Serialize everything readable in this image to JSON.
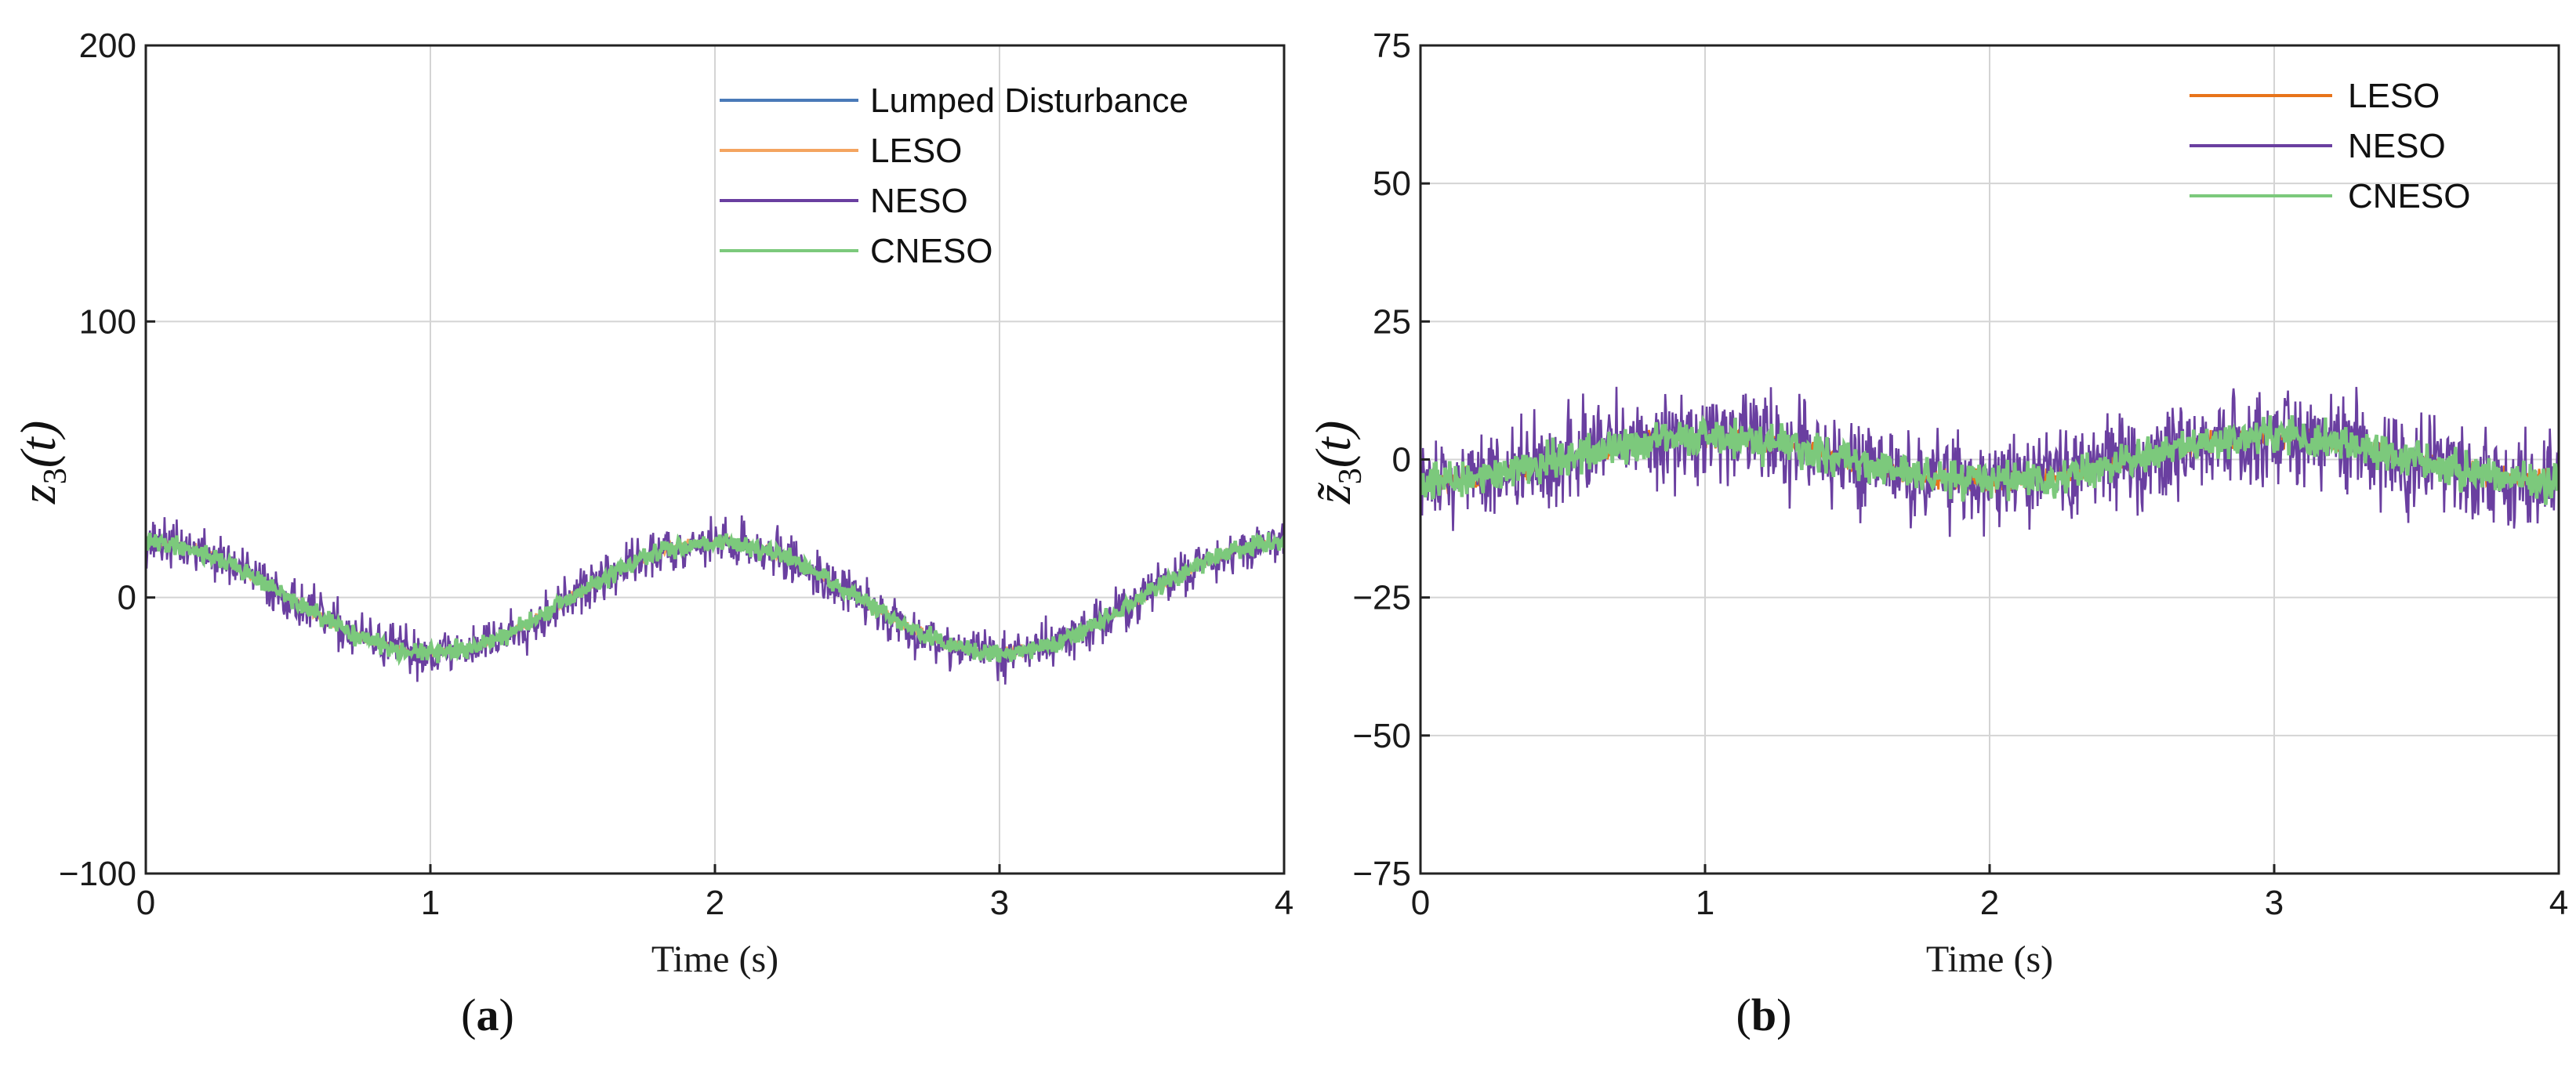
{
  "chart_data": [
    {
      "type": "line",
      "panel_label": "(a)",
      "panel_letter": "a",
      "xlabel": "Time (s)",
      "ylabel": "z3(t)",
      "ylabel_main": "z",
      "ylabel_sub": "3",
      "ylabel_rest": "(t)",
      "xlim": [
        0,
        4
      ],
      "ylim": [
        -100,
        200
      ],
      "xticks": [
        0,
        1,
        2,
        3,
        4
      ],
      "yticks": [
        -100,
        0,
        100,
        200
      ],
      "ytick_labels": [
        "−100",
        "0",
        "100",
        "200"
      ],
      "xtick_labels": [
        "0",
        "1",
        "2",
        "3",
        "4"
      ],
      "grid": true,
      "legend_position": "top-right",
      "reference": {
        "amplitude": 20,
        "frequency_hz": 0.5,
        "phase_deg": 90
      },
      "series": [
        {
          "name": "Lumped Disturbance",
          "color": "#4a7ab8",
          "kind": "true",
          "noise_amplitude": 0
        },
        {
          "name": "LESO",
          "color": "#f4a460",
          "kind": "estimate",
          "noise_amplitude": 2
        },
        {
          "name": "NESO",
          "color": "#6a3fa0",
          "kind": "estimate",
          "noise_amplitude": 9
        },
        {
          "name": "CNESO",
          "color": "#7cc97c",
          "kind": "estimate",
          "noise_amplitude": 3.5
        }
      ]
    },
    {
      "type": "line",
      "panel_label": "(b)",
      "panel_letter": "b",
      "xlabel": "Time (s)",
      "ylabel": "z̃3(t)",
      "ylabel_main": "z̃",
      "ylabel_sub": "3",
      "ylabel_rest": "(t)",
      "xlim": [
        0,
        4
      ],
      "ylim": [
        -75,
        75
      ],
      "xticks": [
        0,
        1,
        2,
        3,
        4
      ],
      "yticks": [
        -75,
        -50,
        -25,
        0,
        25,
        50,
        75
      ],
      "ytick_labels": [
        "−75",
        "−50",
        "−25",
        "0",
        "25",
        "50",
        "75"
      ],
      "xtick_labels": [
        "0",
        "1",
        "2",
        "3",
        "4"
      ],
      "grid": true,
      "legend_position": "top-right",
      "reference": {
        "amplitude": 4,
        "frequency_hz": 0.5,
        "phase_deg": -90
      },
      "series": [
        {
          "name": "LESO",
          "color": "#e8741a",
          "kind": "estimate",
          "noise_amplitude": 2
        },
        {
          "name": "NESO",
          "color": "#6a3fa0",
          "kind": "estimate",
          "noise_amplitude": 9
        },
        {
          "name": "CNESO",
          "color": "#7cc97c",
          "kind": "estimate",
          "noise_amplitude": 3.5
        }
      ]
    }
  ]
}
